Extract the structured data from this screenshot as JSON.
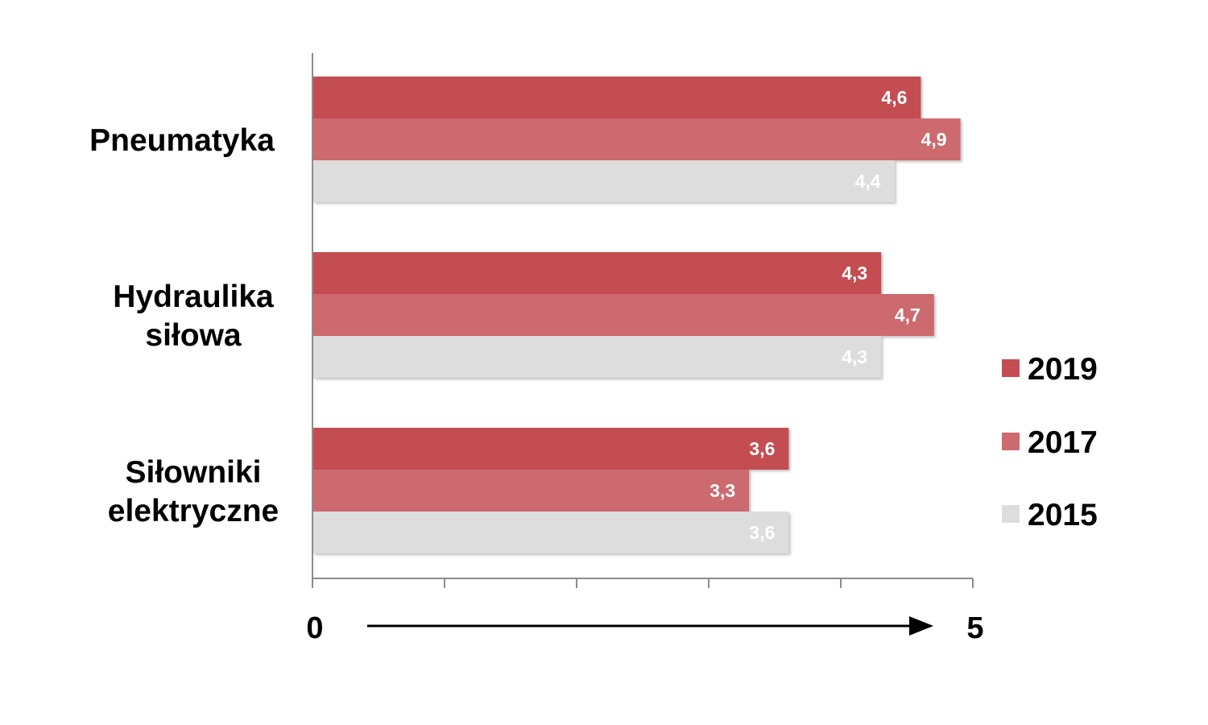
{
  "chart_data": {
    "type": "bar",
    "orientation": "horizontal",
    "categories": [
      [
        "Pneumatyka"
      ],
      [
        "Hydraulika",
        "siłowa"
      ],
      [
        "Siłowniki",
        "elektryczne"
      ]
    ],
    "series": [
      {
        "name": "2019",
        "color": "#c44d51",
        "values": [
          4.6,
          4.3,
          3.6
        ],
        "labels": [
          "4,6",
          "4,3",
          "3,6"
        ]
      },
      {
        "name": "2017",
        "color": "#cc6a70",
        "values": [
          4.9,
          4.7,
          3.3
        ],
        "labels": [
          "4,9",
          "4,7",
          "3,3"
        ]
      },
      {
        "name": "2015",
        "color": "#dddddd",
        "values": [
          4.4,
          4.3,
          3.6
        ],
        "labels": [
          "4,4",
          "4,3",
          "3,6"
        ]
      }
    ],
    "xlim": [
      0,
      5
    ],
    "axis_start_label": "0",
    "axis_end_label": "5",
    "legend_position": "right",
    "grid": false
  }
}
